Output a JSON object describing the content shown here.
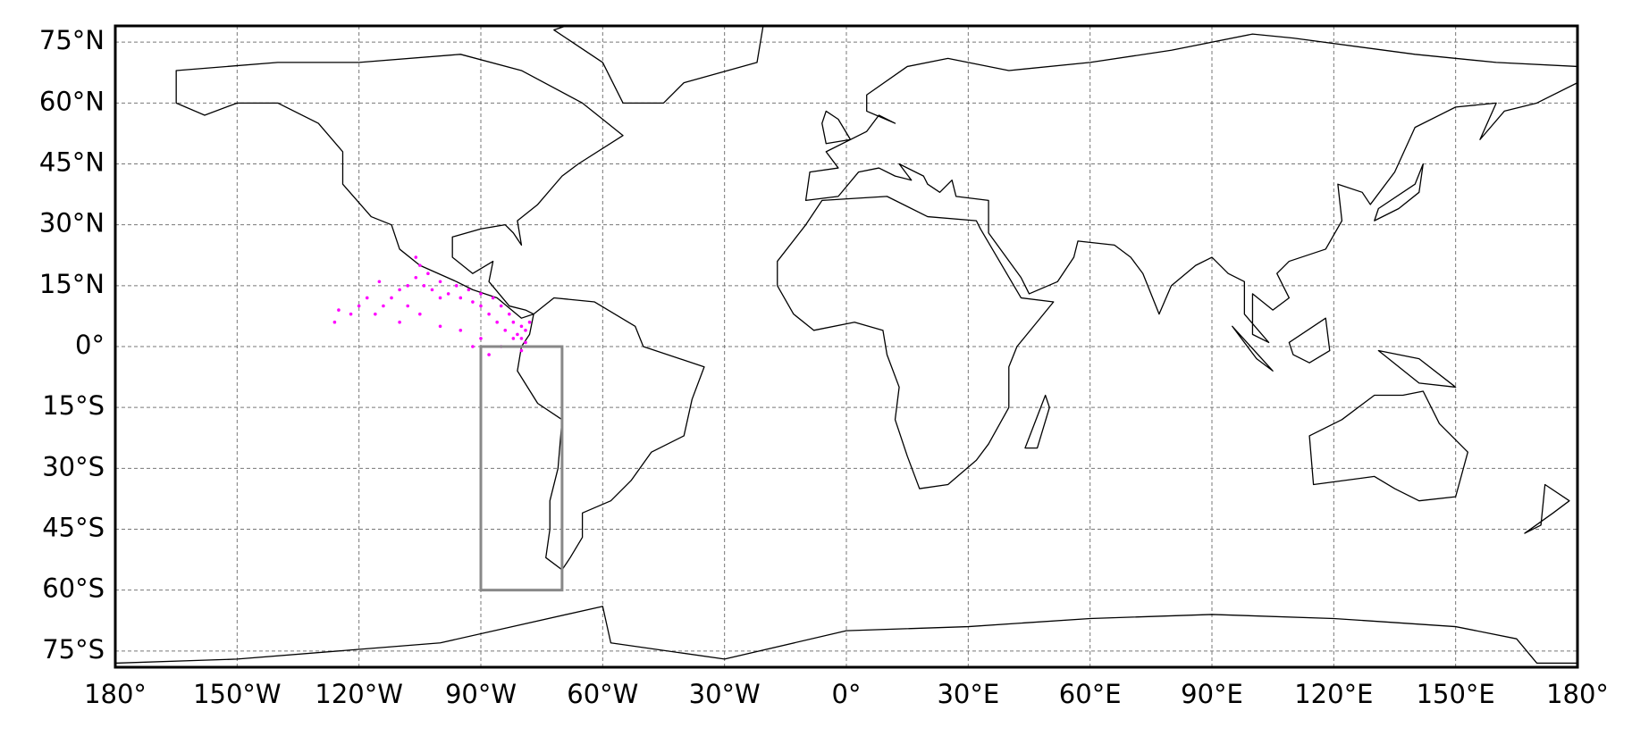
{
  "chart_data": {
    "type": "scatter",
    "xlim": [
      -180,
      180
    ],
    "ylim": [
      -79,
      79
    ],
    "grid": true,
    "color": "#ff00ff",
    "xticks": [
      {
        "value": -180,
        "label": "180°"
      },
      {
        "value": -150,
        "label": "150°W"
      },
      {
        "value": -120,
        "label": "120°W"
      },
      {
        "value": -90,
        "label": "90°W"
      },
      {
        "value": -60,
        "label": "60°W"
      },
      {
        "value": -30,
        "label": "30°W"
      },
      {
        "value": 0,
        "label": "0°"
      },
      {
        "value": 30,
        "label": "30°E"
      },
      {
        "value": 60,
        "label": "60°E"
      },
      {
        "value": 90,
        "label": "90°E"
      },
      {
        "value": 120,
        "label": "120°E"
      },
      {
        "value": 150,
        "label": "150°E"
      },
      {
        "value": 180,
        "label": "180°"
      }
    ],
    "yticks": [
      {
        "value": -75,
        "label": "75°S"
      },
      {
        "value": -60,
        "label": "60°S"
      },
      {
        "value": -45,
        "label": "45°S"
      },
      {
        "value": -30,
        "label": "30°S"
      },
      {
        "value": -15,
        "label": "15°S"
      },
      {
        "value": 0,
        "label": "0°"
      },
      {
        "value": 15,
        "label": "15°N"
      },
      {
        "value": 30,
        "label": "30°N"
      },
      {
        "value": 45,
        "label": "45°N"
      },
      {
        "value": 60,
        "label": "60°N"
      },
      {
        "value": 75,
        "label": "75°N"
      }
    ],
    "x": [
      -80,
      -80,
      -79,
      -78,
      -80,
      -82,
      -83,
      -85,
      -87,
      -90,
      -93,
      -96,
      -100,
      -103,
      -105,
      -106,
      -79,
      -81,
      -82,
      -84,
      -86,
      -88,
      -90,
      -92,
      -95,
      -98,
      -100,
      -102,
      -104,
      -106,
      -108,
      -110,
      -112,
      -114,
      -116,
      -118,
      -120,
      -122,
      -125,
      -126,
      -110,
      -105,
      -100,
      -95,
      -90,
      -85,
      -88,
      -92,
      -115,
      -108
    ],
    "values": [
      -1,
      2,
      4,
      6,
      5,
      6,
      8,
      10,
      12,
      13,
      14,
      15,
      16,
      18,
      20,
      22,
      1,
      3,
      2,
      4,
      6,
      8,
      10,
      11,
      12,
      13,
      12,
      14,
      15,
      17,
      15,
      14,
      12,
      10,
      8,
      12,
      10,
      8,
      9,
      6,
      6,
      8,
      5,
      4,
      2,
      0,
      -2,
      0,
      16,
      10
    ],
    "region": {
      "x": [
        -90,
        -70
      ],
      "y": [
        -60,
        0
      ],
      "color": "#888888"
    }
  }
}
